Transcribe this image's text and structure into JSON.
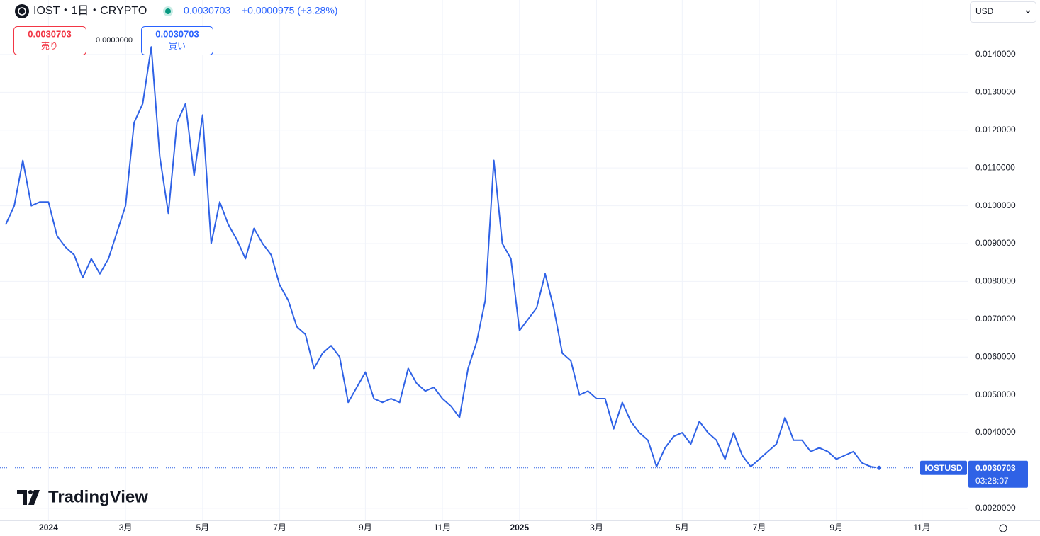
{
  "ui": {
    "symbol": "IOST・1日・CRYPTO",
    "last": "0.0030703",
    "change": "+0.0000975 (+3.28%)",
    "sell_price": "0.0030703",
    "sell_label": "売り",
    "spread": "0.0000000",
    "buy_price": "0.0030703",
    "buy_label": "買い",
    "currency": "USD",
    "ticker_label": "IOSTUSD",
    "last_price_label": "0.0030703",
    "countdown": "03:28:07",
    "logo": "TradingView"
  },
  "chart_data": {
    "type": "line",
    "color": "#2f62e6",
    "grid": true,
    "categories": [
      null,
      null,
      null,
      null,
      null,
      "2024",
      null,
      null,
      null,
      null,
      null,
      null,
      null,
      null,
      "3月",
      null,
      null,
      null,
      null,
      null,
      null,
      null,
      null,
      "5月",
      null,
      null,
      null,
      null,
      null,
      null,
      null,
      null,
      "7月",
      null,
      null,
      null,
      null,
      null,
      null,
      null,
      null,
      null,
      "9月",
      null,
      null,
      null,
      null,
      null,
      null,
      null,
      null,
      "11月",
      null,
      null,
      null,
      null,
      null,
      null,
      null,
      null,
      "2025",
      null,
      null,
      null,
      null,
      null,
      null,
      null,
      null,
      "3月",
      null,
      null,
      null,
      null,
      null,
      null,
      null,
      null,
      null,
      "5月",
      null,
      null,
      null,
      null,
      null,
      null,
      null,
      null,
      "7月",
      null,
      null,
      null,
      null,
      null,
      null,
      null,
      null,
      "9月",
      null,
      null,
      null,
      null,
      null,
      null,
      null,
      null,
      null,
      "11月",
      null,
      null,
      null,
      null,
      null
    ],
    "values": [
      0.0095,
      0.01,
      0.0112,
      0.01,
      0.0101,
      0.0101,
      0.0092,
      0.0089,
      0.0087,
      0.0081,
      0.0086,
      0.0082,
      0.0086,
      0.0093,
      0.01,
      0.0122,
      0.0127,
      0.0142,
      0.0113,
      0.0098,
      0.0122,
      0.0127,
      0.0108,
      0.0124,
      0.009,
      0.0101,
      0.0095,
      0.0091,
      0.0086,
      0.0094,
      0.009,
      0.0087,
      0.0079,
      0.0075,
      0.0068,
      0.0066,
      0.0057,
      0.0061,
      0.0063,
      0.006,
      0.0048,
      0.0052,
      0.0056,
      0.0049,
      0.0048,
      0.0049,
      0.0048,
      0.0057,
      0.0053,
      0.0051,
      0.0052,
      0.0049,
      0.0047,
      0.0044,
      0.0057,
      0.0064,
      0.0075,
      0.0112,
      0.009,
      0.0086,
      0.0067,
      0.007,
      0.0073,
      0.0082,
      0.0073,
      0.0061,
      0.0059,
      0.005,
      0.0051,
      0.0049,
      0.0049,
      0.0041,
      0.0048,
      0.0043,
      0.004,
      0.0038,
      0.0031,
      0.0036,
      0.0039,
      0.004,
      0.0037,
      0.0043,
      0.004,
      0.0038,
      0.0033,
      0.004,
      0.0034,
      0.0031,
      0.0033,
      0.0035,
      0.0037,
      0.0044,
      0.0038,
      0.0038,
      0.0035,
      0.0036,
      0.0035,
      0.0033,
      0.0034,
      0.0035,
      0.0032,
      0.0031,
      0.0030703,
      null,
      null,
      null,
      null,
      null,
      null,
      null,
      null,
      null,
      null
    ],
    "ylim": [
      0.00168,
      0.01544
    ],
    "yticks": [
      {
        "value": 0.002,
        "label": "0.0020000"
      },
      {
        "value": 0.004,
        "label": "0.0040000"
      },
      {
        "value": 0.005,
        "label": "0.0050000"
      },
      {
        "value": 0.006,
        "label": "0.0060000"
      },
      {
        "value": 0.007,
        "label": "0.0070000"
      },
      {
        "value": 0.008,
        "label": "0.0080000"
      },
      {
        "value": 0.009,
        "label": "0.0090000"
      },
      {
        "value": 0.01,
        "label": "0.0100000"
      },
      {
        "value": 0.011,
        "label": "0.0110000"
      },
      {
        "value": 0.012,
        "label": "0.0120000"
      },
      {
        "value": 0.013,
        "label": "0.0130000"
      },
      {
        "value": 0.014,
        "label": "0.0140000"
      }
    ]
  }
}
